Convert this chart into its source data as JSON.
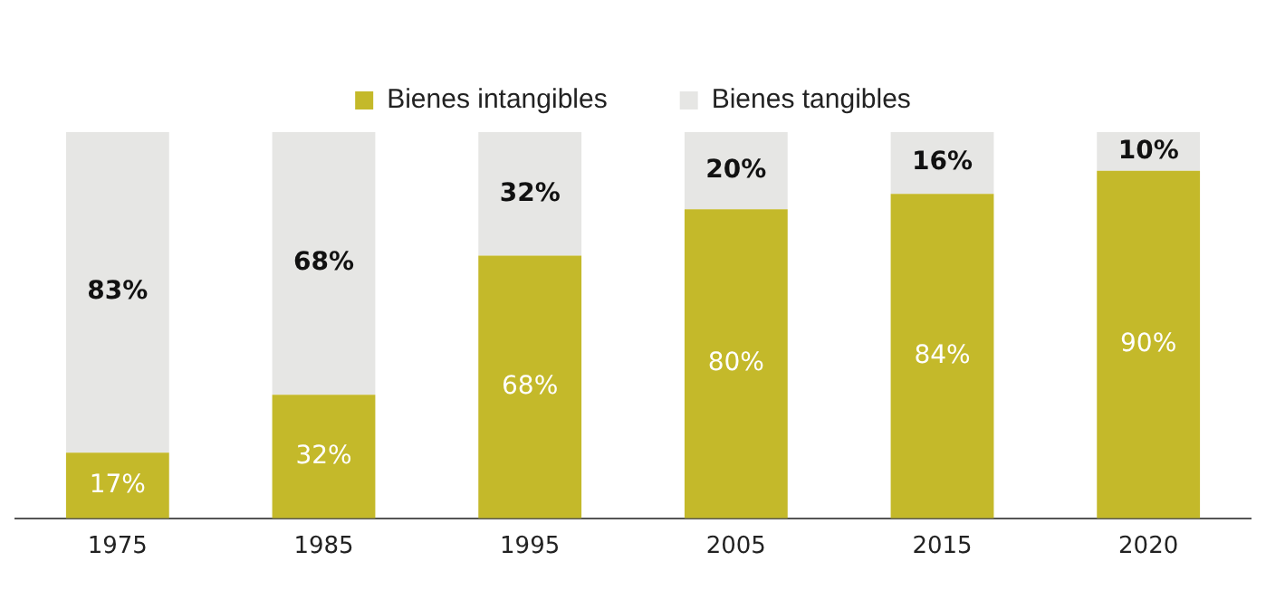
{
  "chart_data": {
    "type": "bar",
    "stacked": true,
    "categories": [
      "1975",
      "1985",
      "1995",
      "2005",
      "2015",
      "2020"
    ],
    "series": [
      {
        "name": "Bienes intangibles",
        "color": "#c4b92a",
        "values": [
          17,
          32,
          68,
          80,
          84,
          90
        ],
        "value_labels": [
          "17%",
          "32%",
          "68%",
          "80%",
          "84%",
          "90%"
        ]
      },
      {
        "name": "Bienes tangibles",
        "color": "#e6e6e4",
        "values": [
          83,
          68,
          32,
          20,
          16,
          10
        ],
        "value_labels": [
          "83%",
          "68%",
          "32%",
          "20%",
          "16%",
          "10%"
        ]
      }
    ],
    "legend": "top",
    "grid": false
  }
}
